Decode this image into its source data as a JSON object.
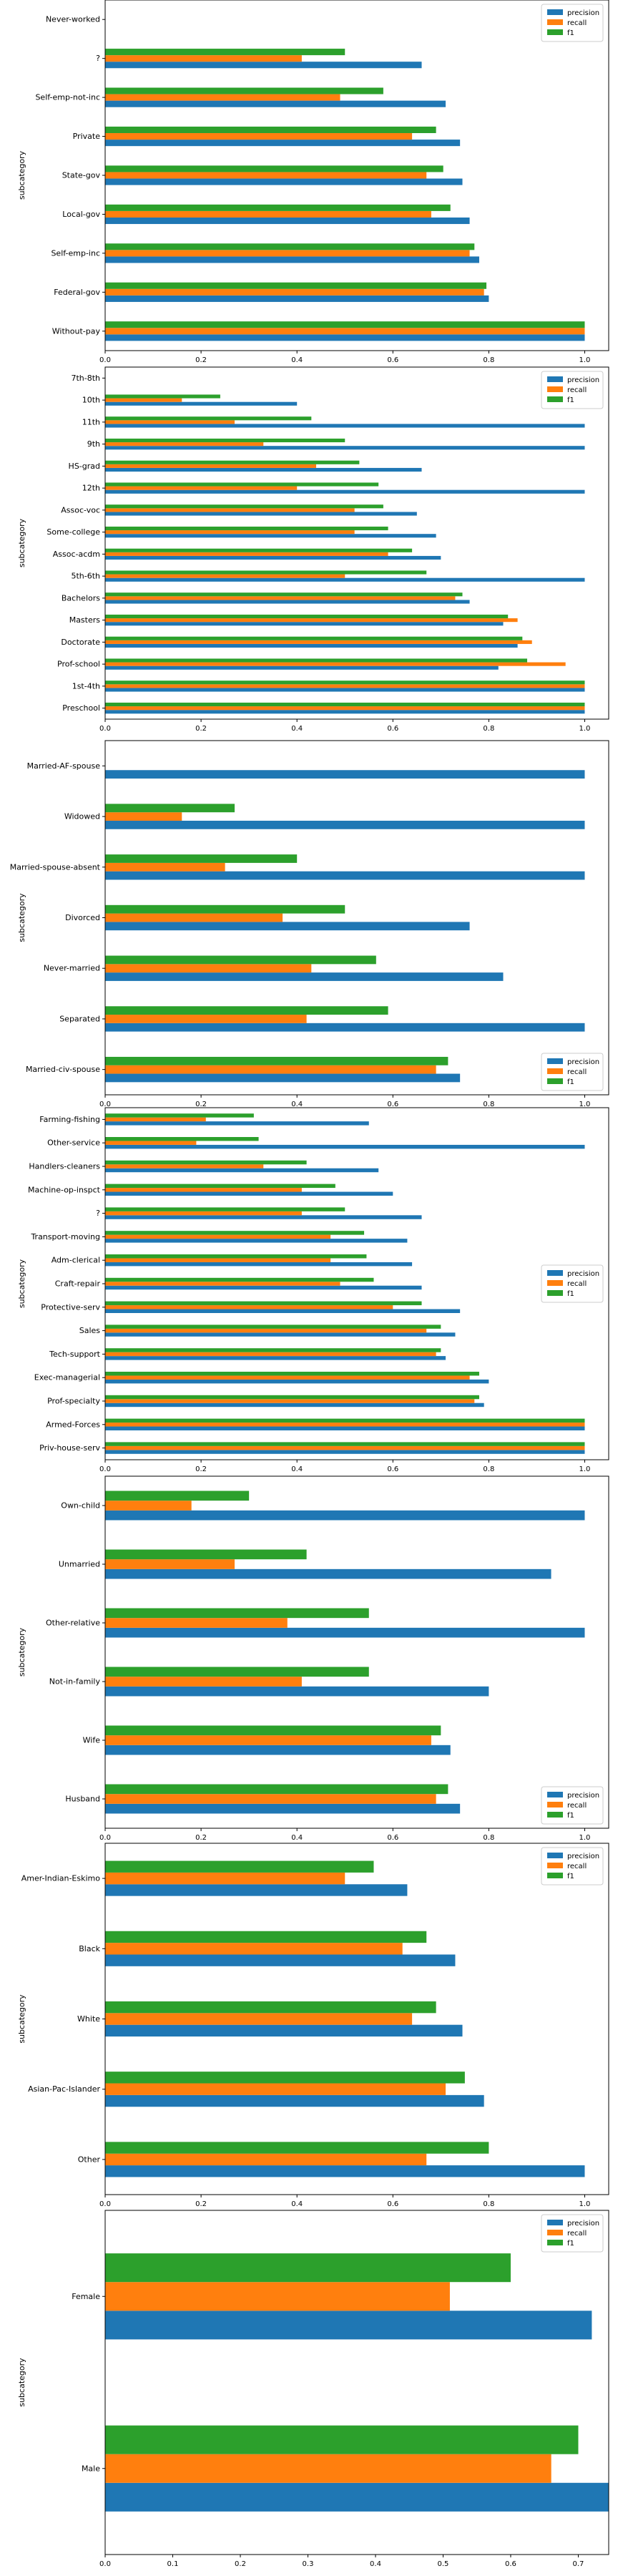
{
  "colors": {
    "precision": "#1f77b4",
    "recall": "#ff7f0e",
    "f1": "#2ca02c"
  },
  "chart_data": [
    {
      "type": "bar",
      "orientation": "horizontal",
      "ylabel": "subcategory",
      "xlim": [
        0,
        1.05
      ],
      "xticks": [
        "0.0",
        "0.2",
        "0.4",
        "0.6",
        "0.8",
        "1.0"
      ],
      "xtick_values": [
        0,
        0.2,
        0.4,
        0.6,
        0.8,
        1.0
      ],
      "legend": "top-right",
      "categories": [
        "Without-pay",
        "Federal-gov",
        "Self-emp-inc",
        "Local-gov",
        "State-gov",
        "Private",
        "Self-emp-not-inc",
        "?",
        "Never-worked"
      ],
      "series": [
        {
          "name": "precision",
          "values": [
            1.0,
            0.8,
            0.78,
            0.76,
            0.745,
            0.74,
            0.71,
            0.66,
            0
          ]
        },
        {
          "name": "recall",
          "values": [
            1.0,
            0.79,
            0.76,
            0.68,
            0.67,
            0.64,
            0.49,
            0.41,
            0
          ]
        },
        {
          "name": "f1",
          "values": [
            1.0,
            0.795,
            0.77,
            0.72,
            0.705,
            0.69,
            0.58,
            0.5,
            0
          ]
        }
      ]
    },
    {
      "type": "bar",
      "orientation": "horizontal",
      "ylabel": "subcategory",
      "xlim": [
        0,
        1.05
      ],
      "xticks": [
        "0.0",
        "0.2",
        "0.4",
        "0.6",
        "0.8",
        "1.0"
      ],
      "xtick_values": [
        0,
        0.2,
        0.4,
        0.6,
        0.8,
        1.0
      ],
      "legend": "top-right",
      "categories": [
        "Preschool",
        "1st-4th",
        "Prof-school",
        "Doctorate",
        "Masters",
        "Bachelors",
        "5th-6th",
        "Assoc-acdm",
        "Some-college",
        "Assoc-voc",
        "12th",
        "HS-grad",
        "9th",
        "11th",
        "10th",
        "7th-8th"
      ],
      "series": [
        {
          "name": "precision",
          "values": [
            1.0,
            1.0,
            0.82,
            0.86,
            0.83,
            0.76,
            1.0,
            0.7,
            0.69,
            0.65,
            1.0,
            0.66,
            1.0,
            1.0,
            0.4,
            0
          ]
        },
        {
          "name": "recall",
          "values": [
            1.0,
            1.0,
            0.96,
            0.89,
            0.86,
            0.73,
            0.5,
            0.59,
            0.52,
            0.52,
            0.4,
            0.44,
            0.33,
            0.27,
            0.16,
            0
          ]
        },
        {
          "name": "f1",
          "values": [
            1.0,
            1.0,
            0.88,
            0.87,
            0.84,
            0.745,
            0.67,
            0.64,
            0.59,
            0.58,
            0.57,
            0.53,
            0.5,
            0.43,
            0.24,
            0
          ]
        }
      ]
    },
    {
      "type": "bar",
      "orientation": "horizontal",
      "ylabel": "subcategory",
      "xlim": [
        0,
        1.05
      ],
      "xticks": [
        "0.0",
        "0.2",
        "0.4",
        "0.6",
        "0.8",
        "1.0"
      ],
      "xtick_values": [
        0,
        0.2,
        0.4,
        0.6,
        0.8,
        1.0
      ],
      "legend": "bottom-right",
      "categories": [
        "Married-civ-spouse",
        "Separated",
        "Never-married",
        "Divorced",
        "Married-spouse-absent",
        "Widowed",
        "Married-AF-spouse"
      ],
      "series": [
        {
          "name": "precision",
          "values": [
            0.74,
            1.0,
            0.83,
            0.76,
            1.0,
            1.0,
            1.0
          ]
        },
        {
          "name": "recall",
          "values": [
            0.69,
            0.42,
            0.43,
            0.37,
            0.25,
            0.16,
            0
          ]
        },
        {
          "name": "f1",
          "values": [
            0.715,
            0.59,
            0.565,
            0.5,
            0.4,
            0.27,
            0
          ]
        }
      ]
    },
    {
      "type": "bar",
      "orientation": "horizontal",
      "ylabel": "subcategory",
      "xlim": [
        0,
        1.05
      ],
      "xticks": [
        "0.0",
        "0.2",
        "0.4",
        "0.6",
        "0.8",
        "1.0"
      ],
      "xtick_values": [
        0,
        0.2,
        0.4,
        0.6,
        0.8,
        1.0
      ],
      "legend": "center-right",
      "categories": [
        "Priv-house-serv",
        "Armed-Forces",
        "Prof-specialty",
        "Exec-managerial",
        "Tech-support",
        "Sales",
        "Protective-serv",
        "Craft-repair",
        "Adm-clerical",
        "Transport-moving",
        "?",
        "Machine-op-inspct",
        "Handlers-cleaners",
        "Other-service",
        "Farming-fishing"
      ],
      "series": [
        {
          "name": "precision",
          "values": [
            1.0,
            1.0,
            0.79,
            0.8,
            0.71,
            0.73,
            0.74,
            0.66,
            0.64,
            0.63,
            0.66,
            0.6,
            0.57,
            1.0,
            0.55
          ]
        },
        {
          "name": "recall",
          "values": [
            1.0,
            1.0,
            0.77,
            0.76,
            0.69,
            0.67,
            0.6,
            0.49,
            0.47,
            0.47,
            0.41,
            0.41,
            0.33,
            0.19,
            0.21
          ]
        },
        {
          "name": "f1",
          "values": [
            1.0,
            1.0,
            0.78,
            0.78,
            0.7,
            0.7,
            0.66,
            0.56,
            0.545,
            0.54,
            0.5,
            0.48,
            0.42,
            0.32,
            0.31
          ]
        }
      ]
    },
    {
      "type": "bar",
      "orientation": "horizontal",
      "ylabel": "subcategory",
      "xlim": [
        0,
        1.05
      ],
      "xticks": [
        "0.0",
        "0.2",
        "0.4",
        "0.6",
        "0.8",
        "1.0"
      ],
      "xtick_values": [
        0,
        0.2,
        0.4,
        0.6,
        0.8,
        1.0
      ],
      "legend": "bottom-right",
      "categories": [
        "Husband",
        "Wife",
        "Not-in-family",
        "Other-relative",
        "Unmarried",
        "Own-child"
      ],
      "series": [
        {
          "name": "precision",
          "values": [
            0.74,
            0.72,
            0.8,
            1.0,
            0.93,
            1.0
          ]
        },
        {
          "name": "recall",
          "values": [
            0.69,
            0.68,
            0.41,
            0.38,
            0.27,
            0.18
          ]
        },
        {
          "name": "f1",
          "values": [
            0.715,
            0.7,
            0.55,
            0.55,
            0.42,
            0.3
          ]
        }
      ]
    },
    {
      "type": "bar",
      "orientation": "horizontal",
      "ylabel": "subcategory",
      "xlim": [
        0,
        1.05
      ],
      "xticks": [
        "0.0",
        "0.2",
        "0.4",
        "0.6",
        "0.8",
        "1.0"
      ],
      "xtick_values": [
        0,
        0.2,
        0.4,
        0.6,
        0.8,
        1.0
      ],
      "legend": "top-right",
      "categories": [
        "Other",
        "Asian-Pac-Islander",
        "White",
        "Black",
        "Amer-Indian-Eskimo"
      ],
      "series": [
        {
          "name": "precision",
          "values": [
            1.0,
            0.79,
            0.745,
            0.73,
            0.63
          ]
        },
        {
          "name": "recall",
          "values": [
            0.67,
            0.71,
            0.64,
            0.62,
            0.5
          ]
        },
        {
          "name": "f1",
          "values": [
            0.8,
            0.75,
            0.69,
            0.67,
            0.56
          ]
        }
      ]
    },
    {
      "type": "bar",
      "orientation": "horizontal",
      "ylabel": "subcategory",
      "xlim": [
        0,
        0.745
      ],
      "xticks": [
        "0.0",
        "0.1",
        "0.2",
        "0.3",
        "0.4",
        "0.5",
        "0.6",
        "0.7"
      ],
      "xtick_values": [
        0,
        0.1,
        0.2,
        0.3,
        0.4,
        0.5,
        0.6,
        0.7
      ],
      "legend": "top-right",
      "categories": [
        "Male",
        "Female"
      ],
      "series": [
        {
          "name": "precision",
          "values": [
            0.745,
            0.72
          ]
        },
        {
          "name": "recall",
          "values": [
            0.66,
            0.51
          ]
        },
        {
          "name": "f1",
          "values": [
            0.7,
            0.6
          ]
        }
      ]
    }
  ]
}
